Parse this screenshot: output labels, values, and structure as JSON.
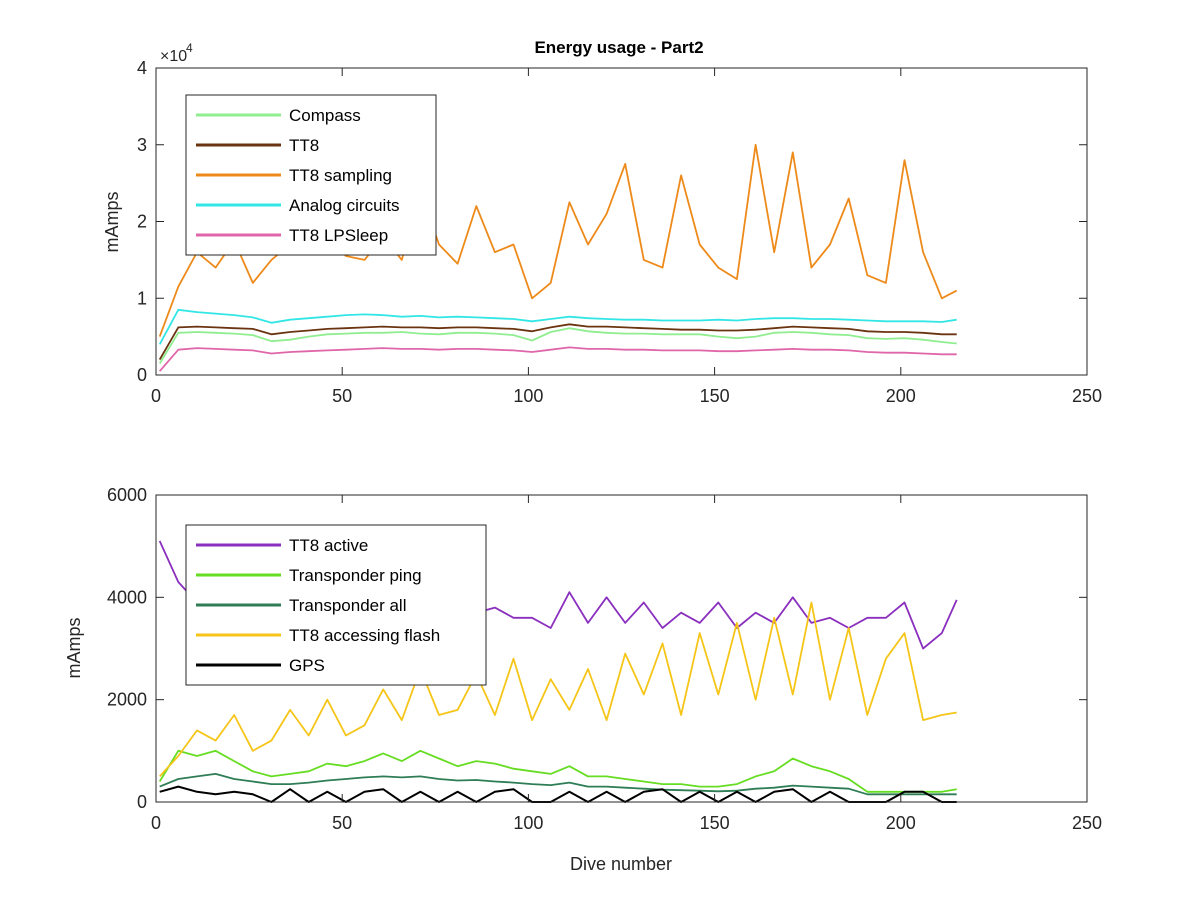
{
  "figure_title": "Energy usage - Part2",
  "chart_data": [
    {
      "type": "line",
      "title": "Energy usage - Part2",
      "xlabel": "",
      "ylabel": "mAmps",
      "exponent_label": "×10",
      "exponent_power": "4",
      "xlim": [
        0,
        250
      ],
      "ylim": [
        0,
        40000
      ],
      "xticks": [
        "0",
        "50",
        "100",
        "150",
        "200",
        "250"
      ],
      "yticks": [
        "0",
        "1",
        "2",
        "3",
        "4"
      ],
      "grid": false,
      "legend_position": "top-left",
      "x": [
        1,
        6,
        11,
        16,
        21,
        26,
        31,
        36,
        41,
        46,
        51,
        56,
        61,
        66,
        71,
        76,
        81,
        86,
        91,
        96,
        101,
        106,
        111,
        116,
        121,
        126,
        131,
        136,
        141,
        146,
        151,
        156,
        161,
        166,
        171,
        176,
        181,
        186,
        191,
        196,
        201,
        206,
        211,
        215
      ],
      "series": [
        {
          "name": "Compass",
          "color": "#90ee90",
          "values": [
            1500,
            5500,
            5600,
            5500,
            5400,
            5200,
            4400,
            4600,
            5000,
            5300,
            5400,
            5500,
            5500,
            5600,
            5400,
            5300,
            5500,
            5500,
            5400,
            5200,
            4500,
            5600,
            6100,
            5700,
            5500,
            5400,
            5400,
            5300,
            5300,
            5300,
            5000,
            4800,
            5000,
            5500,
            5600,
            5500,
            5300,
            5200,
            4800,
            4700,
            4800,
            4600,
            4300,
            4100
          ]
        },
        {
          "name": "TT8",
          "color": "#6b3410",
          "values": [
            2000,
            6200,
            6300,
            6200,
            6100,
            6000,
            5300,
            5600,
            5800,
            6000,
            6100,
            6200,
            6300,
            6200,
            6200,
            6100,
            6200,
            6200,
            6100,
            6000,
            5700,
            6200,
            6600,
            6300,
            6300,
            6200,
            6100,
            6000,
            5900,
            5900,
            5800,
            5800,
            5900,
            6100,
            6300,
            6200,
            6100,
            6000,
            5700,
            5600,
            5600,
            5500,
            5300,
            5300
          ]
        },
        {
          "name": "TT8 sampling",
          "color": "#ed8a1a",
          "values": [
            5000,
            11500,
            16000,
            14000,
            17500,
            12000,
            15000,
            17000,
            16000,
            18000,
            15500,
            15000,
            18000,
            15000,
            24000,
            17000,
            14500,
            22000,
            16000,
            17000,
            10000,
            12000,
            22500,
            17000,
            21000,
            27500,
            15000,
            14000,
            26000,
            17000,
            14000,
            12500,
            30000,
            16000,
            29000,
            14000,
            17000,
            23000,
            13000,
            12000,
            28000,
            16000,
            10000,
            11000
          ]
        },
        {
          "name": "Analog circuits",
          "color": "#33e6e6",
          "values": [
            4000,
            8500,
            8200,
            8000,
            7800,
            7500,
            6800,
            7200,
            7400,
            7600,
            7800,
            7900,
            7800,
            7600,
            7700,
            7500,
            7600,
            7500,
            7400,
            7300,
            7000,
            7300,
            7600,
            7400,
            7300,
            7200,
            7200,
            7100,
            7100,
            7100,
            7200,
            7100,
            7300,
            7400,
            7400,
            7300,
            7300,
            7200,
            7100,
            7000,
            7000,
            7000,
            6900,
            7200
          ]
        },
        {
          "name": "TT8 LPSleep",
          "color": "#e066aa",
          "values": [
            500,
            3300,
            3500,
            3400,
            3300,
            3200,
            2800,
            3000,
            3100,
            3200,
            3300,
            3400,
            3500,
            3400,
            3400,
            3300,
            3400,
            3400,
            3300,
            3200,
            3000,
            3300,
            3600,
            3400,
            3400,
            3300,
            3300,
            3200,
            3200,
            3200,
            3100,
            3100,
            3200,
            3300,
            3400,
            3300,
            3300,
            3200,
            3000,
            2900,
            2900,
            2800,
            2700,
            2700
          ]
        }
      ]
    },
    {
      "type": "line",
      "title": "",
      "xlabel": "Dive number",
      "ylabel": "mAmps",
      "xlim": [
        0,
        250
      ],
      "ylim": [
        0,
        6000
      ],
      "xticks": [
        "0",
        "50",
        "100",
        "150",
        "200",
        "250"
      ],
      "yticks": [
        "0",
        "2000",
        "4000",
        "6000"
      ],
      "grid": false,
      "legend_position": "top-left",
      "x": [
        1,
        6,
        11,
        16,
        21,
        26,
        31,
        36,
        41,
        46,
        51,
        56,
        61,
        66,
        71,
        76,
        81,
        86,
        91,
        96,
        101,
        106,
        111,
        116,
        121,
        126,
        131,
        136,
        141,
        146,
        151,
        156,
        161,
        166,
        171,
        176,
        181,
        186,
        191,
        196,
        201,
        206,
        211,
        215
      ],
      "series": [
        {
          "name": "TT8 active",
          "color": "#8a2fbe",
          "values": [
            5100,
            4300,
            3900,
            3700,
            3500,
            3700,
            3600,
            3500,
            3700,
            3600,
            3800,
            3700,
            4000,
            3800,
            3900,
            3800,
            4000,
            3700,
            3800,
            3600,
            3600,
            3400,
            4100,
            3500,
            4000,
            3500,
            3900,
            3400,
            3700,
            3500,
            3900,
            3400,
            3700,
            3500,
            4000,
            3500,
            3600,
            3400,
            3600,
            3600,
            3900,
            3000,
            3300,
            3950
          ]
        },
        {
          "name": "Transponder ping",
          "color": "#66dd22",
          "values": [
            400,
            1000,
            900,
            1000,
            800,
            600,
            500,
            550,
            600,
            750,
            700,
            800,
            950,
            800,
            1000,
            850,
            700,
            800,
            750,
            650,
            600,
            550,
            700,
            500,
            500,
            450,
            400,
            350,
            350,
            300,
            300,
            350,
            500,
            600,
            850,
            700,
            600,
            450,
            200,
            200,
            200,
            200,
            200,
            250
          ]
        },
        {
          "name": "Transponder all",
          "color": "#2e7d55",
          "values": [
            300,
            450,
            500,
            550,
            450,
            400,
            350,
            350,
            380,
            420,
            450,
            480,
            500,
            480,
            500,
            450,
            420,
            430,
            400,
            380,
            350,
            330,
            380,
            300,
            300,
            280,
            260,
            240,
            230,
            220,
            210,
            220,
            260,
            280,
            320,
            300,
            280,
            260,
            150,
            150,
            150,
            150,
            150,
            150
          ]
        },
        {
          "name": "TT8 accessing flash",
          "color": "#f5c518",
          "values": [
            500,
            900,
            1400,
            1200,
            1700,
            1000,
            1200,
            1800,
            1300,
            2000,
            1300,
            1500,
            2200,
            1600,
            2600,
            1700,
            1800,
            2500,
            1700,
            2800,
            1600,
            2400,
            1800,
            2600,
            1600,
            2900,
            2100,
            3100,
            1700,
            3300,
            2100,
            3500,
            2000,
            3600,
            2100,
            3900,
            2000,
            3400,
            1700,
            2800,
            3300,
            1600,
            1700,
            1750
          ]
        },
        {
          "name": "GPS",
          "color": "#000000",
          "values": [
            200,
            300,
            200,
            150,
            200,
            150,
            0,
            250,
            0,
            200,
            0,
            200,
            250,
            0,
            200,
            0,
            200,
            0,
            200,
            250,
            0,
            0,
            200,
            0,
            200,
            0,
            200,
            250,
            0,
            200,
            0,
            200,
            0,
            200,
            250,
            0,
            200,
            0,
            0,
            0,
            200,
            200,
            0,
            0
          ]
        }
      ]
    }
  ]
}
